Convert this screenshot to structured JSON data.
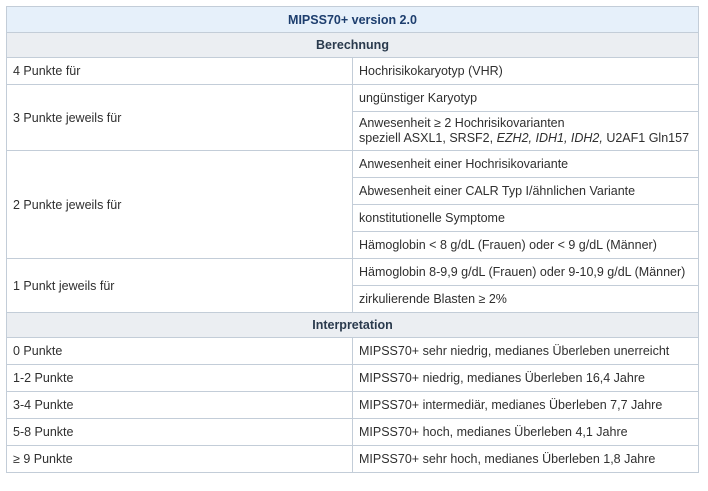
{
  "title": "MIPSS70+ version 2.0",
  "sections": {
    "calculation": "Berechnung",
    "interpretation": "Interpretation"
  },
  "groups": [
    {
      "label": "4 Punkte für",
      "items": [
        "Hochrisikokaryotyp (VHR)"
      ]
    },
    {
      "label": "3 Punkte jeweils für",
      "items": [
        "ungünstiger Karyotyp",
        {
          "line1": "Anwesenheit ≥ 2 Hochrisikovarianten",
          "line2_prefix": "speziell ASXL1, SRSF2, ",
          "line2_italic": "EZH2, IDH1, IDH2,",
          "line2_suffix": " U2AF1 Gln157"
        }
      ]
    },
    {
      "label": "2 Punkte jeweils für",
      "items": [
        "Anwesenheit einer Hochrisikovariante",
        "Abwesenheit einer CALR Typ I/ähnlichen Variante",
        "konstitutionelle Symptome",
        "Hämoglobin < 8 g/dL (Frauen) oder < 9 g/dL (Männer)"
      ]
    },
    {
      "label": "1 Punkt jeweils für",
      "items": [
        "Hämoglobin 8-9,9 g/dL (Frauen) oder 9-10,9 g/dL (Männer)",
        "zirkulierende Blasten ≥ 2%"
      ]
    }
  ],
  "interpretation": [
    {
      "points": "0 Punkte",
      "text": "MIPSS70+ sehr niedrig, medianes Überleben unerreicht"
    },
    {
      "points": "1-2 Punkte",
      "text": "MIPSS70+ niedrig, medianes Überleben 16,4 Jahre"
    },
    {
      "points": "3-4 Punkte",
      "text": "MIPSS70+ intermediär, medianes Überleben 7,7 Jahre"
    },
    {
      "points": "5-8 Punkte",
      "text": "MIPSS70+ hoch, medianes Überleben 4,1 Jahre"
    },
    {
      "points": "≥ 9 Punkte",
      "text": "MIPSS70+ sehr hoch, medianes Überleben 1,8 Jahre"
    }
  ]
}
